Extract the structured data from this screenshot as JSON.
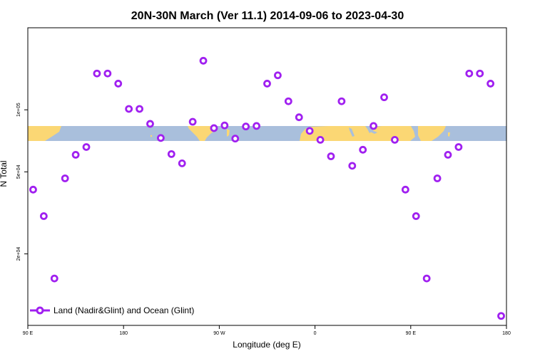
{
  "chart_data": {
    "type": "scatter",
    "title": "20N-30N March (Ver 11.1)   2014-09-06 to 2023-04-30",
    "xlabel": "Longitude (deg E)",
    "ylabel": "N Total",
    "x_tick_labels": [
      "90 E",
      "180",
      "90 W",
      "0",
      "90 E",
      "180"
    ],
    "x_ticks_continuous_deg": [
      90,
      180,
      270,
      360,
      450,
      540
    ],
    "xlim": [
      90,
      540
    ],
    "y_scale": "log",
    "y_tick_labels": [
      "2e+04",
      "5e+04",
      "1e+05"
    ],
    "y_ticks": [
      20000,
      50000,
      100000
    ],
    "ylim": [
      9000,
      250000
    ],
    "map_band_lat": "20N-30N",
    "colors": {
      "marker": "#a020f0",
      "ocean": "#a9bfdc",
      "land": "#fbd774",
      "frame": "#000000"
    },
    "series": [
      {
        "name": "Land (Nadir&Glint) and Ocean (Glint)",
        "marker": "open-circle",
        "x": [
          95,
          105,
          115,
          125,
          135,
          145,
          155,
          165,
          175,
          185,
          195,
          205,
          215,
          225,
          235,
          245,
          255,
          265,
          275,
          285,
          295,
          305,
          315,
          325,
          335,
          345,
          355,
          365,
          375,
          385,
          395,
          405,
          415,
          425,
          435,
          445,
          455,
          465,
          475,
          485,
          495,
          505,
          515,
          525,
          535
        ],
        "y": [
          41000,
          30500,
          15200,
          46500,
          60500,
          66000,
          150000,
          150000,
          134000,
          101000,
          101000,
          85500,
          73000,
          61000,
          55000,
          87500,
          173000,
          81500,
          84000,
          72500,
          83000,
          83500,
          134000,
          147000,
          110000,
          92000,
          79000,
          71500,
          59500,
          110000,
          53500,
          64000,
          83500,
          115000,
          71500,
          41000,
          30500,
          15200,
          46500,
          60500,
          66000,
          150000,
          150000,
          134000,
          10000
        ]
      }
    ],
    "legend": {
      "position": "bottom-left",
      "label": "Land (Nadir&Glint) and Ocean (Glint)"
    }
  }
}
